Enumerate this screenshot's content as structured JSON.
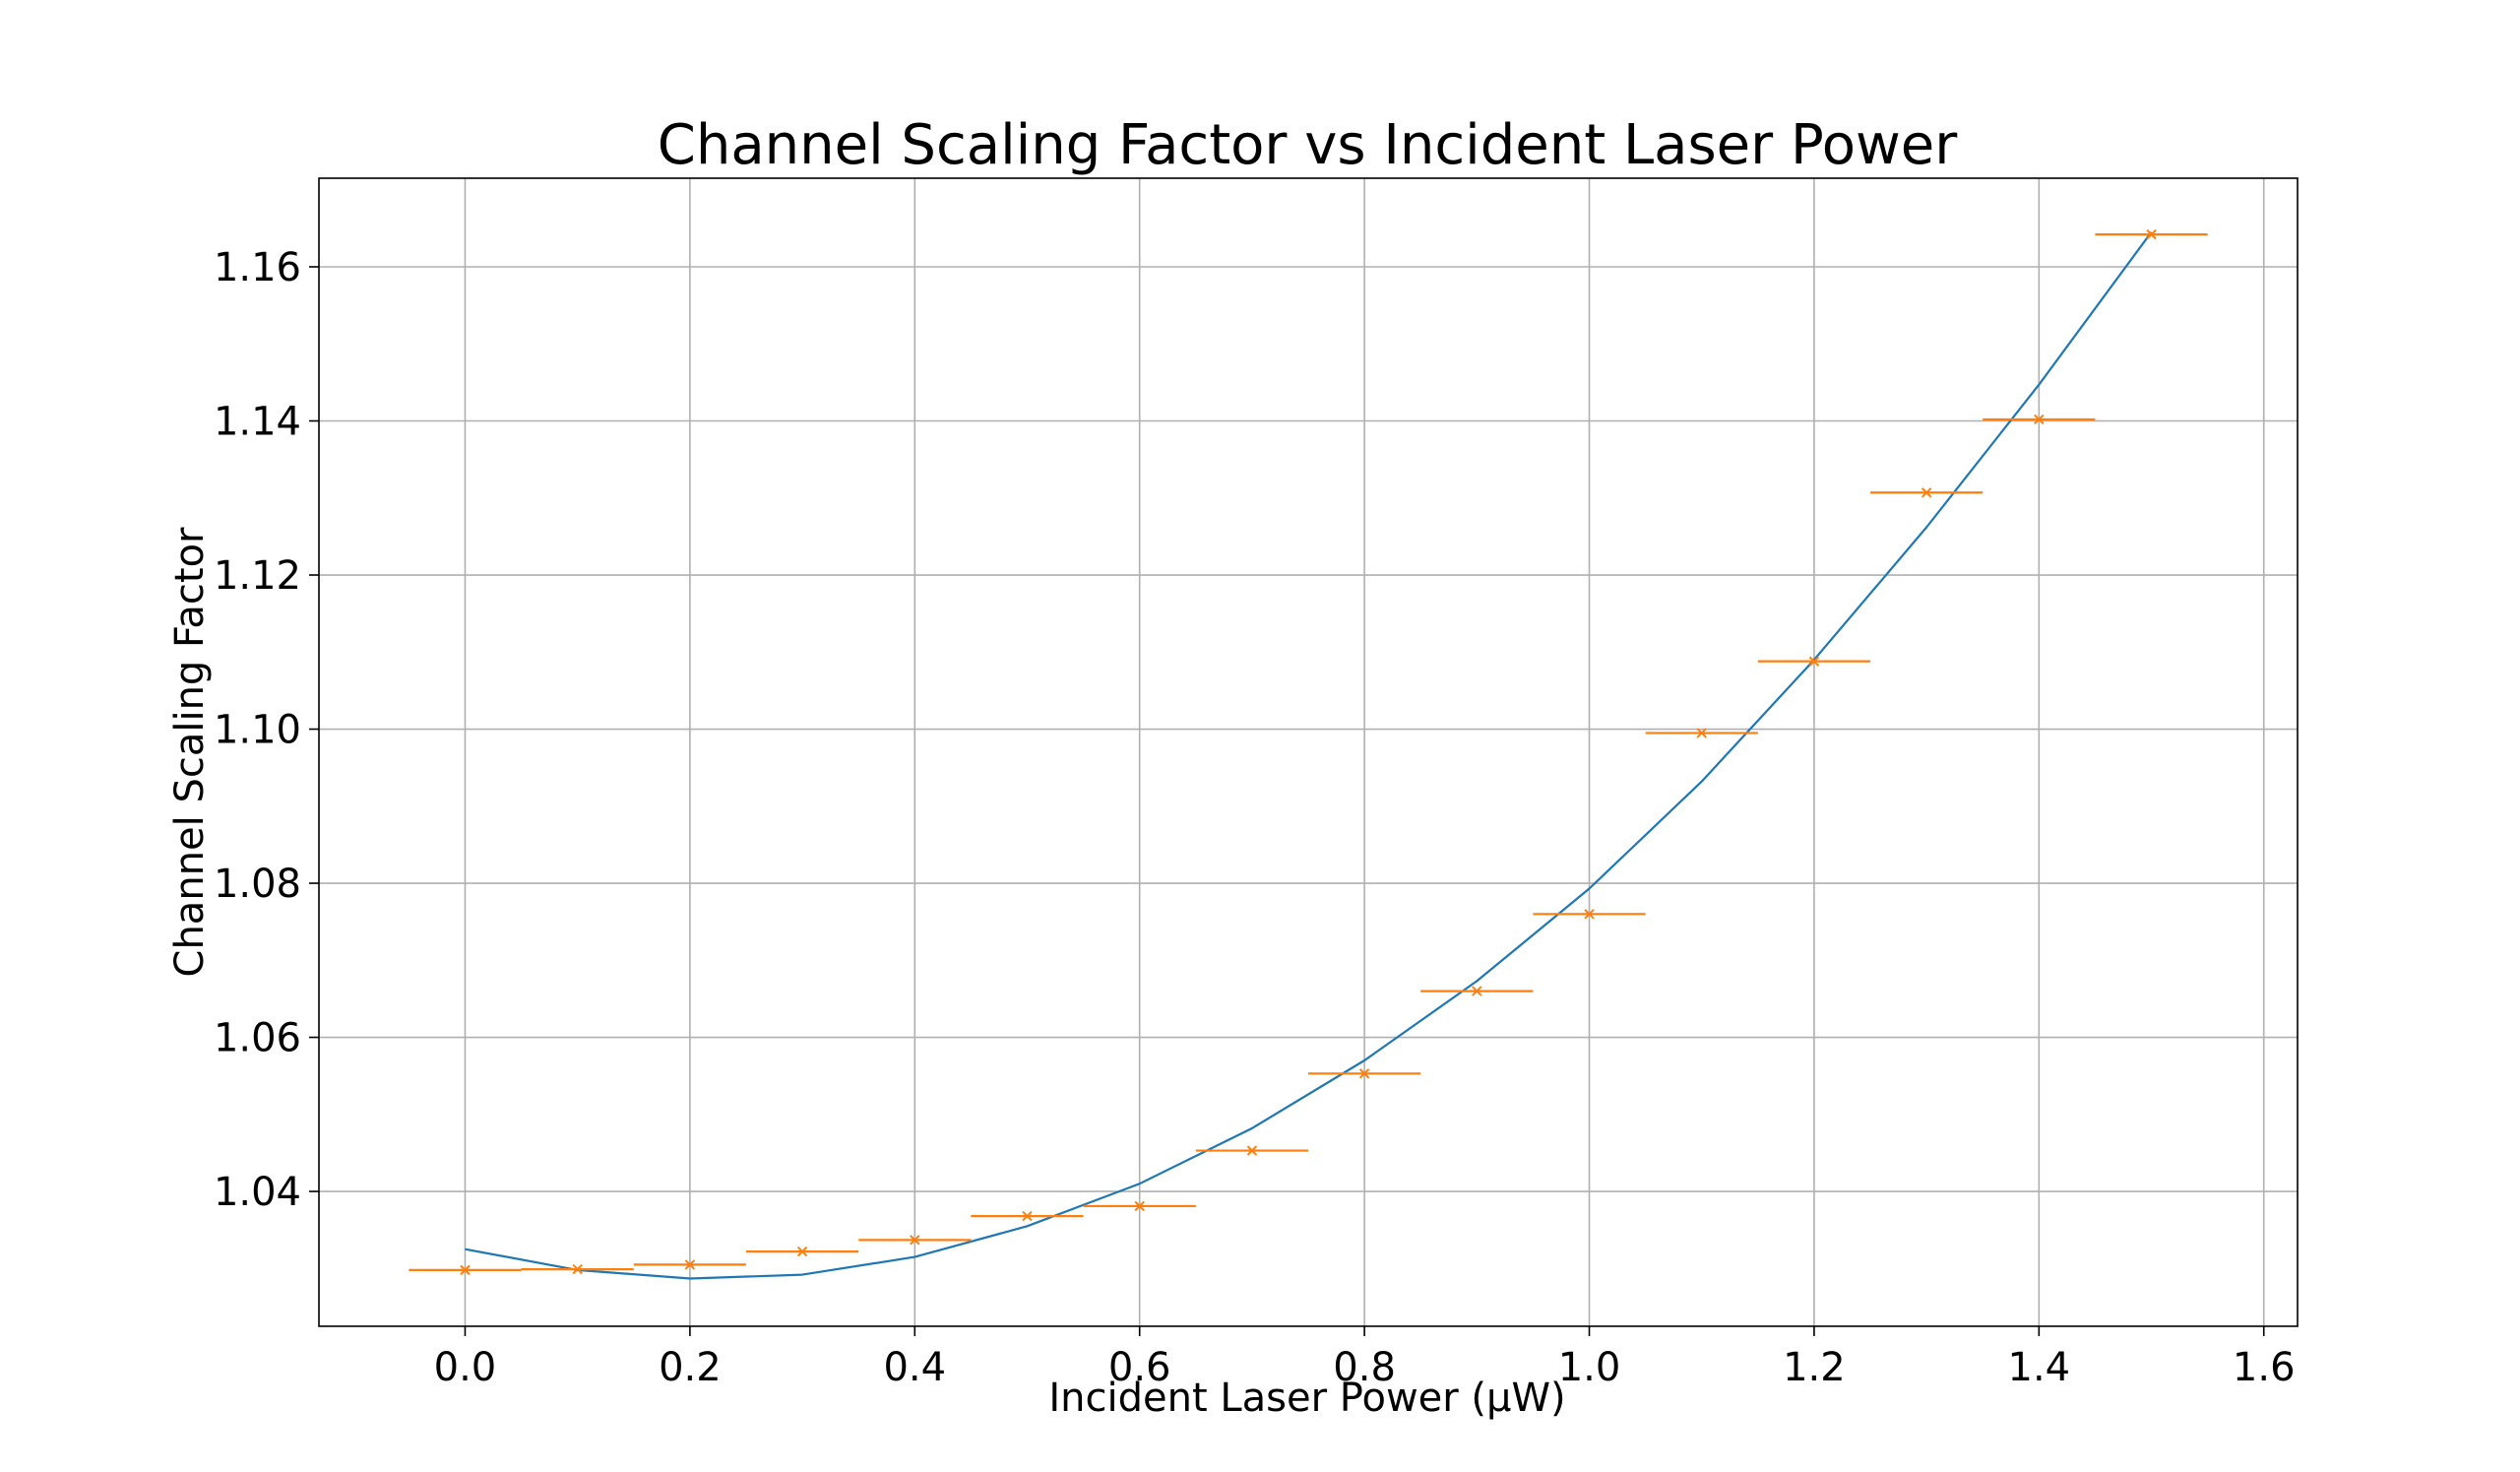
{
  "chart_data": {
    "type": "line",
    "title": "Channel Scaling Factor vs Incident Laser Power",
    "xlabel": "Incident Laser Power (μW)",
    "ylabel": "Channel Scaling Factor",
    "xlim": [
      -0.13,
      1.63
    ],
    "ylim": [
      1.0225,
      1.1715
    ],
    "grid": true,
    "x_ticks": [
      0.0,
      0.2,
      0.4,
      0.6,
      0.8,
      1.0,
      1.2,
      1.4,
      1.6
    ],
    "x_tick_labels": [
      "0.0",
      "0.2",
      "0.4",
      "0.6",
      "0.8",
      "1.0",
      "1.2",
      "1.4",
      "1.6"
    ],
    "y_ticks": [
      1.04,
      1.06,
      1.08,
      1.1,
      1.12,
      1.14,
      1.16
    ],
    "y_tick_labels": [
      "1.04",
      "1.06",
      "1.08",
      "1.10",
      "1.12",
      "1.14",
      "1.16"
    ],
    "series": [
      {
        "kind": "line",
        "color": "#1f77b4",
        "x": [
          0.0,
          0.1,
          0.2,
          0.3,
          0.4,
          0.5,
          0.6,
          0.7,
          0.8,
          0.9,
          1.0,
          1.1,
          1.2,
          1.3,
          1.4,
          1.5
        ],
        "y": [
          1.0325,
          1.0298,
          1.0287,
          1.0292,
          1.0315,
          1.0355,
          1.041,
          1.0482,
          1.057,
          1.0673,
          1.0793,
          1.0932,
          1.109,
          1.1262,
          1.1447,
          1.1645
        ]
      },
      {
        "kind": "errorbar",
        "color": "#ff7f0e",
        "marker": "x",
        "x": [
          0.0,
          0.1,
          0.2,
          0.3,
          0.4,
          0.5,
          0.6,
          0.7,
          0.8,
          0.9,
          1.0,
          1.1,
          1.2,
          1.3,
          1.4,
          1.5
        ],
        "y": [
          1.0298,
          1.0299,
          1.0305,
          1.0322,
          1.0337,
          1.0368,
          1.0381,
          1.0453,
          1.0553,
          1.066,
          1.076,
          1.0995,
          1.1088,
          1.1307,
          1.1402,
          1.1642
        ],
        "xerr": 0.05
      }
    ]
  }
}
